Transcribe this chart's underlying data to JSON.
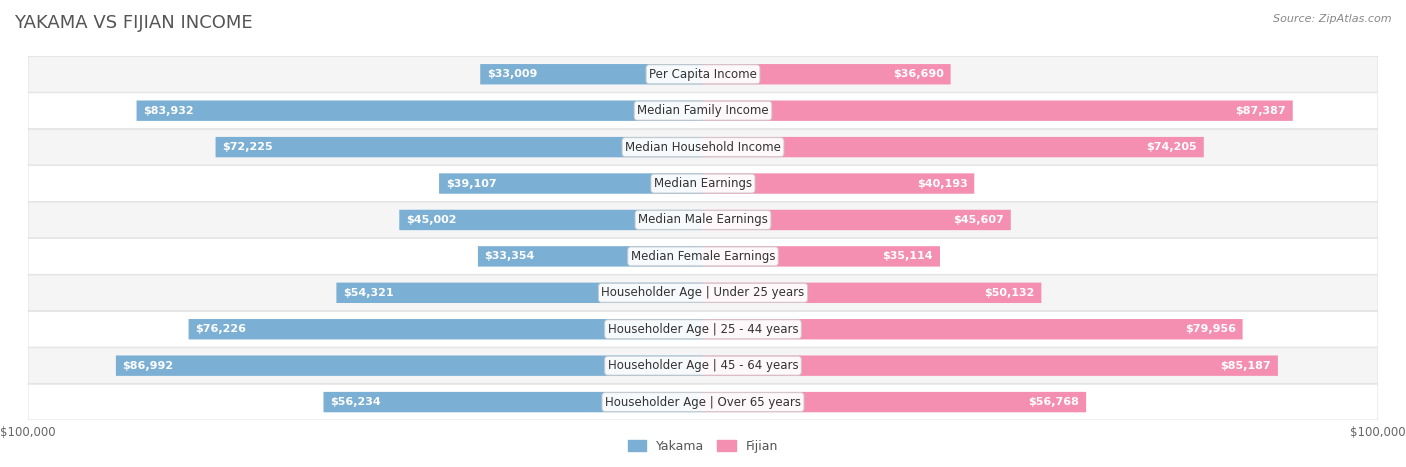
{
  "title": "YAKAMA VS FIJIAN INCOME",
  "source": "Source: ZipAtlas.com",
  "categories": [
    "Per Capita Income",
    "Median Family Income",
    "Median Household Income",
    "Median Earnings",
    "Median Male Earnings",
    "Median Female Earnings",
    "Householder Age | Under 25 years",
    "Householder Age | 25 - 44 years",
    "Householder Age | 45 - 64 years",
    "Householder Age | Over 65 years"
  ],
  "yakama_values": [
    33009,
    83932,
    72225,
    39107,
    45002,
    33354,
    54321,
    76226,
    86992,
    56234
  ],
  "fijian_values": [
    36690,
    87387,
    74205,
    40193,
    45607,
    35114,
    50132,
    79956,
    85187,
    56768
  ],
  "yakama_labels": [
    "$33,009",
    "$83,932",
    "$72,225",
    "$39,107",
    "$45,002",
    "$33,354",
    "$54,321",
    "$76,226",
    "$86,992",
    "$56,234"
  ],
  "fijian_labels": [
    "$36,690",
    "$87,387",
    "$74,205",
    "$40,193",
    "$45,607",
    "$35,114",
    "$50,132",
    "$79,956",
    "$85,187",
    "$56,768"
  ],
  "yakama_color": "#7BAFD4",
  "fijian_color": "#F48FB1",
  "yakama_color_dark": "#5B9EC9",
  "fijian_color_dark": "#F06292",
  "max_value": 100000,
  "bar_height": 0.55,
  "row_bg_color_even": "#f5f5f5",
  "row_bg_color_odd": "#ffffff",
  "title_fontsize": 13,
  "label_fontsize": 8.5,
  "value_fontsize": 8,
  "legend_fontsize": 9,
  "source_fontsize": 8
}
